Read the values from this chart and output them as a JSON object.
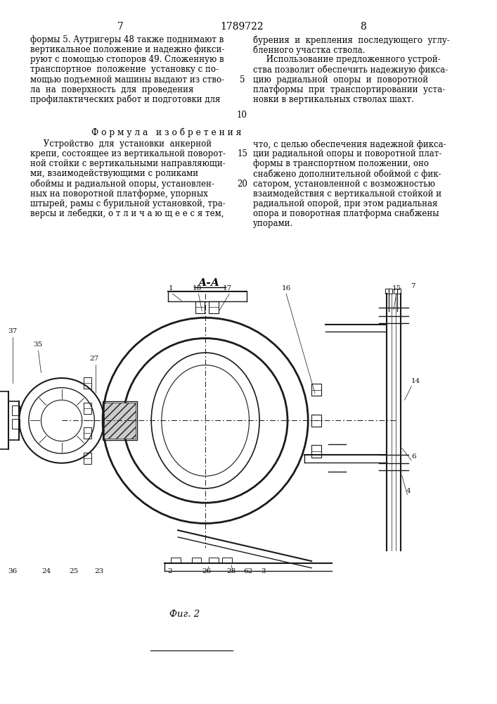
{
  "page_number_left": "7",
  "page_number_center": "1789722",
  "page_number_right": "8",
  "line_number_5": "5",
  "line_number_10": "10",
  "line_number_15": "15",
  "line_number_20": "20",
  "left_col_text": [
    "формы 5. Аутригеры 48 также поднимают в",
    "вертикальное положение и надежно фикси-",
    "руют с помощью стопоров 49. Сложенную в",
    "транспортное  положение  установку с по-",
    "мощью подъемной машины выдают из ство-",
    "ла  на  поверхность  для  проведения",
    "профилактических работ и подготовки для"
  ],
  "right_col_text": [
    "бурения  и  крепления  последующего  углу-",
    "бленного участка ствола.",
    "     Использование предложенного устрой-",
    "ства позволит обеспечить надежную фикса-",
    "цию  радиальной  опоры  и  поворотной",
    "платформы  при  транспортировании  уста-",
    "новки в вертикальных стволах шахт."
  ],
  "formula_title": "Ф о р м у л а   и з о б р е т е н и я",
  "formula_left": [
    "     Устройство  для  установки  анкерной",
    "крепи, состоящее из вертикальной поворот-",
    "ной стойки с вертикальными направляющи-",
    "ми, взаимодействующими с роликами",
    "обоймы и радиальной опоры, установлен-",
    "ных на поворотной платформе, упорных",
    "штырей, рамы с бурильной установкой, тра-",
    "версы и лебедки, о т л и ч а ю щ е е с я тем,"
  ],
  "formula_right": [
    "что, с целью обеспечения надежной фикса-",
    "ции радиальной опоры и поворотной плат-",
    "формы в транспортном положении, оно",
    "снабжено дополнительной обоймой с фик-",
    "сатором, установленной с возможностью",
    "взаимодействия с вертикальной стойкой и",
    "радиальной опорой, при этом радиальная",
    "опора и поворотная платформа снабжены",
    "упорами."
  ],
  "figure_label": "А-А",
  "figure_caption": "Фиг. 2",
  "bg_color": "#ffffff",
  "text_color": "#000000",
  "drawing_color": "#1a1a1a"
}
